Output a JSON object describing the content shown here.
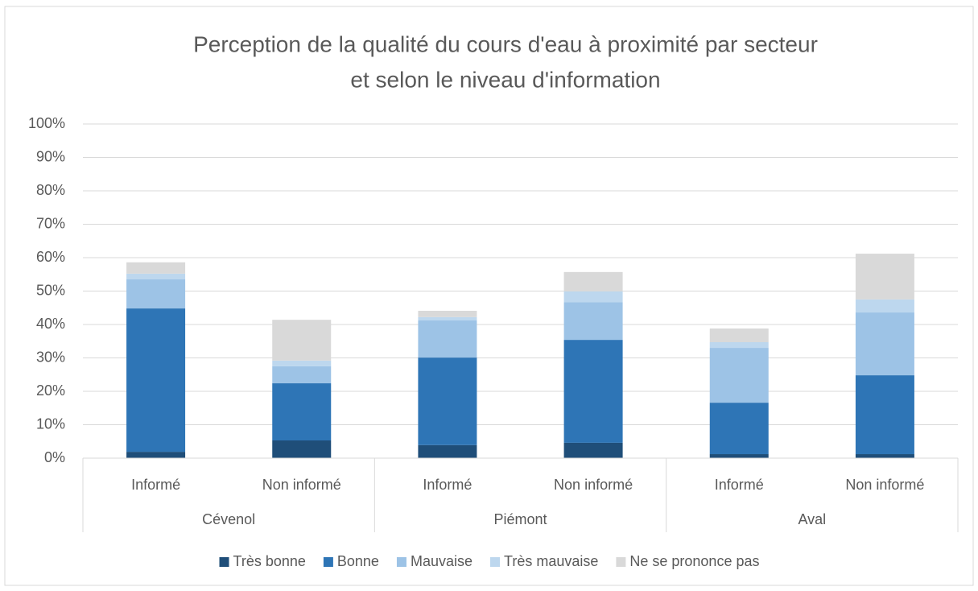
{
  "chart_data": {
    "type": "stacked_bar",
    "title": [
      "Perception de la qualité du cours d'eau à proximité par secteur",
      "et selon le niveau d'information"
    ],
    "groups": [
      "Cévenol",
      "Piémont",
      "Aval"
    ],
    "categories": [
      "Informé",
      "Non informé",
      "Informé",
      "Non informé",
      "Informé",
      "Non informé"
    ],
    "series": [
      {
        "name": "Très bonne",
        "color": "#1f4e79",
        "values": [
          1.9,
          5.3,
          3.9,
          4.6,
          1.2,
          1.2
        ]
      },
      {
        "name": "Bonne",
        "color": "#2e75b6",
        "values": [
          42.9,
          17.1,
          26.2,
          30.8,
          15.4,
          23.6
        ]
      },
      {
        "name": "Mauvaise",
        "color": "#9dc3e6",
        "values": [
          8.7,
          5.1,
          11.1,
          11.3,
          16.4,
          18.8
        ]
      },
      {
        "name": "Très mauvaise",
        "color": "#bdd7ee",
        "values": [
          1.7,
          1.7,
          1.0,
          3.2,
          1.7,
          3.9
        ]
      },
      {
        "name": "Ne se prononce pas",
        "color": "#d9d9d9",
        "values": [
          3.4,
          12.2,
          1.9,
          5.8,
          4.1,
          13.7
        ]
      }
    ],
    "ylim": [
      0,
      100
    ],
    "yticks": [
      {
        "value": 0,
        "label": "0%"
      },
      {
        "value": 10,
        "label": "10%"
      },
      {
        "value": 20,
        "label": "20%"
      },
      {
        "value": 30,
        "label": "30%"
      },
      {
        "value": 40,
        "label": "40%"
      },
      {
        "value": 50,
        "label": "50%"
      },
      {
        "value": 60,
        "label": "60%"
      },
      {
        "value": 70,
        "label": "70%"
      },
      {
        "value": 80,
        "label": "80%"
      },
      {
        "value": 90,
        "label": "90%"
      },
      {
        "value": 100,
        "label": "100%"
      }
    ],
    "grid": true,
    "legend": "bottom"
  }
}
